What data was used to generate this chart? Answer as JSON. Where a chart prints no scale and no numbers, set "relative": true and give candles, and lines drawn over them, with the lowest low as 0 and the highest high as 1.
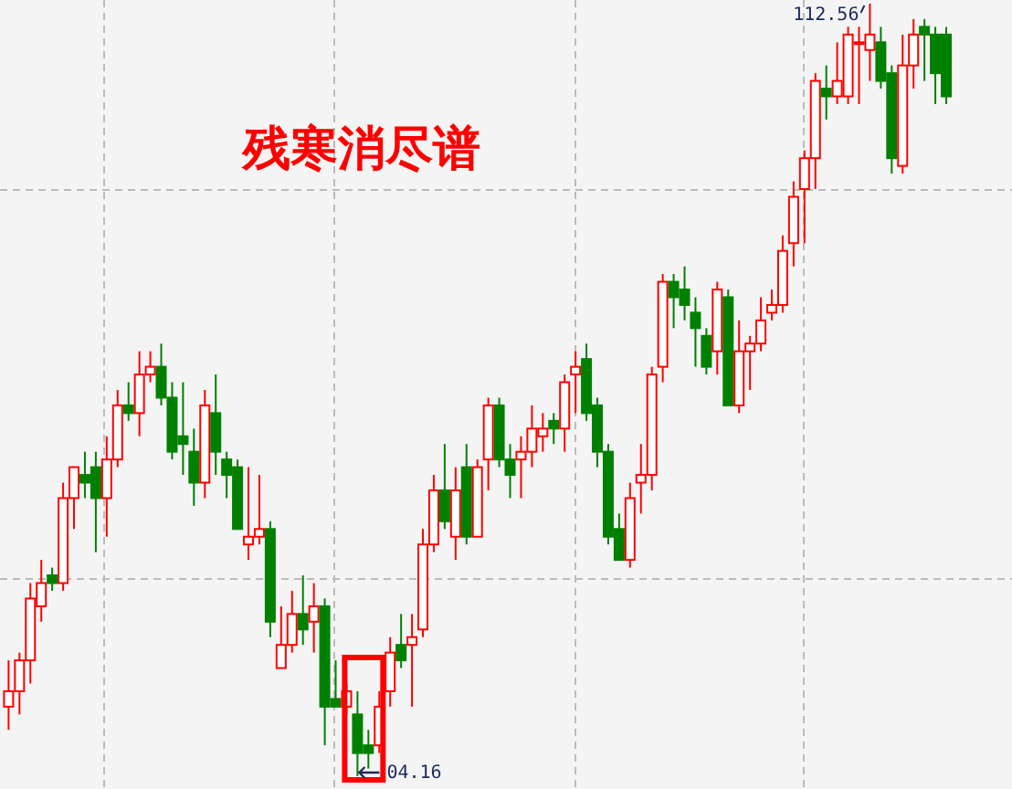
{
  "chart_data": {
    "type": "candlestick",
    "title": "残寒消尽谱",
    "relative": true,
    "grid": true,
    "annotations": [
      "112.56",
      "04.16"
    ],
    "categories": [
      null,
      null,
      null,
      null,
      null,
      null,
      null,
      null,
      null,
      null,
      null,
      null,
      null,
      null,
      null,
      null,
      null,
      null,
      null,
      null,
      null,
      null,
      null,
      null,
      null,
      null,
      null,
      null,
      null,
      null,
      null,
      null,
      null,
      null,
      null,
      null,
      null,
      null,
      null,
      null,
      null,
      null,
      null,
      null,
      null,
      null,
      null,
      null,
      null,
      null,
      null,
      null,
      null,
      null,
      null,
      null,
      null,
      null,
      null,
      null,
      null,
      null,
      null,
      null,
      null,
      null,
      null,
      null,
      null,
      null,
      null,
      null,
      null,
      null,
      null,
      null,
      null,
      null,
      null,
      null,
      null,
      null,
      null,
      null,
      null,
      null,
      null
    ],
    "ohlc": [
      [
        0.09,
        0.15,
        0.06,
        0.11
      ],
      [
        0.11,
        0.16,
        0.08,
        0.15
      ],
      [
        0.15,
        0.25,
        0.12,
        0.23
      ],
      [
        0.22,
        0.28,
        0.2,
        0.25
      ],
      [
        0.26,
        0.27,
        0.24,
        0.25
      ],
      [
        0.25,
        0.38,
        0.24,
        0.36
      ],
      [
        0.36,
        0.4,
        0.32,
        0.4
      ],
      [
        0.39,
        0.42,
        0.36,
        0.38
      ],
      [
        0.4,
        0.42,
        0.29,
        0.36
      ],
      [
        0.36,
        0.44,
        0.31,
        0.41
      ],
      [
        0.41,
        0.5,
        0.4,
        0.48
      ],
      [
        0.48,
        0.51,
        0.46,
        0.47
      ],
      [
        0.47,
        0.55,
        0.44,
        0.52
      ],
      [
        0.52,
        0.55,
        0.51,
        0.53
      ],
      [
        0.53,
        0.56,
        0.48,
        0.49
      ],
      [
        0.49,
        0.51,
        0.41,
        0.42
      ],
      [
        0.44,
        0.51,
        0.39,
        0.43
      ],
      [
        0.42,
        0.45,
        0.35,
        0.38
      ],
      [
        0.38,
        0.5,
        0.36,
        0.48
      ],
      [
        0.47,
        0.52,
        0.39,
        0.42
      ],
      [
        0.41,
        0.42,
        0.36,
        0.39
      ],
      [
        0.4,
        0.41,
        0.32,
        0.32
      ],
      [
        0.3,
        0.4,
        0.28,
        0.31
      ],
      [
        0.31,
        0.39,
        0.3,
        0.32
      ],
      [
        0.32,
        0.33,
        0.18,
        0.2
      ],
      [
        0.14,
        0.22,
        0.14,
        0.17
      ],
      [
        0.17,
        0.24,
        0.16,
        0.21
      ],
      [
        0.21,
        0.26,
        0.17,
        0.19
      ],
      [
        0.2,
        0.25,
        0.16,
        0.22
      ],
      [
        0.22,
        0.23,
        0.04,
        0.09
      ],
      [
        0.1,
        0.15,
        0.09,
        0.09
      ],
      [
        0.09,
        0.12,
        0.08,
        0.11
      ],
      [
        0.08,
        0.11,
        0.0,
        0.03
      ],
      [
        0.04,
        0.06,
        0.01,
        0.03
      ],
      [
        0.04,
        0.11,
        0.03,
        0.09
      ],
      [
        0.11,
        0.18,
        0.09,
        0.16
      ],
      [
        0.17,
        0.21,
        0.14,
        0.15
      ],
      [
        0.17,
        0.21,
        0.09,
        0.18
      ],
      [
        0.19,
        0.32,
        0.18,
        0.3
      ],
      [
        0.3,
        0.39,
        0.29,
        0.37
      ],
      [
        0.37,
        0.43,
        0.32,
        0.33
      ],
      [
        0.31,
        0.4,
        0.28,
        0.37
      ],
      [
        0.4,
        0.43,
        0.3,
        0.31
      ],
      [
        0.31,
        0.41,
        0.31,
        0.4
      ],
      [
        0.41,
        0.49,
        0.37,
        0.48
      ],
      [
        0.48,
        0.49,
        0.4,
        0.41
      ],
      [
        0.41,
        0.43,
        0.36,
        0.39
      ],
      [
        0.41,
        0.44,
        0.36,
        0.42
      ],
      [
        0.42,
        0.48,
        0.4,
        0.45
      ],
      [
        0.44,
        0.47,
        0.42,
        0.45
      ],
      [
        0.46,
        0.47,
        0.43,
        0.45
      ],
      [
        0.45,
        0.52,
        0.42,
        0.51
      ],
      [
        0.52,
        0.55,
        0.47,
        0.53
      ],
      [
        0.54,
        0.56,
        0.46,
        0.47
      ],
      [
        0.48,
        0.49,
        0.4,
        0.42
      ],
      [
        0.42,
        0.43,
        0.3,
        0.31
      ],
      [
        0.32,
        0.34,
        0.28,
        0.28
      ],
      [
        0.28,
        0.38,
        0.27,
        0.36
      ],
      [
        0.38,
        0.43,
        0.34,
        0.39
      ],
      [
        0.39,
        0.53,
        0.37,
        0.52
      ],
      [
        0.53,
        0.65,
        0.51,
        0.64
      ],
      [
        0.64,
        0.65,
        0.58,
        0.62
      ],
      [
        0.63,
        0.66,
        0.59,
        0.61
      ],
      [
        0.6,
        0.62,
        0.53,
        0.58
      ],
      [
        0.57,
        0.58,
        0.52,
        0.53
      ],
      [
        0.55,
        0.64,
        0.52,
        0.63
      ],
      [
        0.62,
        0.63,
        0.48,
        0.48
      ],
      [
        0.48,
        0.59,
        0.47,
        0.55
      ],
      [
        0.55,
        0.57,
        0.5,
        0.56
      ],
      [
        0.56,
        0.62,
        0.55,
        0.59
      ],
      [
        0.6,
        0.63,
        0.59,
        0.61
      ],
      [
        0.61,
        0.7,
        0.6,
        0.68
      ],
      [
        0.69,
        0.77,
        0.66,
        0.75
      ],
      [
        0.76,
        0.81,
        0.69,
        0.8
      ],
      [
        0.8,
        0.91,
        0.76,
        0.9
      ],
      [
        0.89,
        0.92,
        0.85,
        0.88
      ],
      [
        0.88,
        0.95,
        0.87,
        0.9
      ],
      [
        0.88,
        0.97,
        0.87,
        0.96
      ],
      [
        0.95,
        0.97,
        0.87,
        0.95
      ],
      [
        0.94,
        1.0,
        0.9,
        0.96
      ],
      [
        0.95,
        0.97,
        0.89,
        0.9
      ],
      [
        0.91,
        0.92,
        0.78,
        0.8
      ],
      [
        0.79,
        0.96,
        0.78,
        0.92
      ],
      [
        0.92,
        0.98,
        0.89,
        0.96
      ],
      [
        0.97,
        0.98,
        0.9,
        0.96
      ],
      [
        0.96,
        0.97,
        0.87,
        0.91
      ],
      [
        0.96,
        0.97,
        0.87,
        0.88
      ]
    ]
  }
}
